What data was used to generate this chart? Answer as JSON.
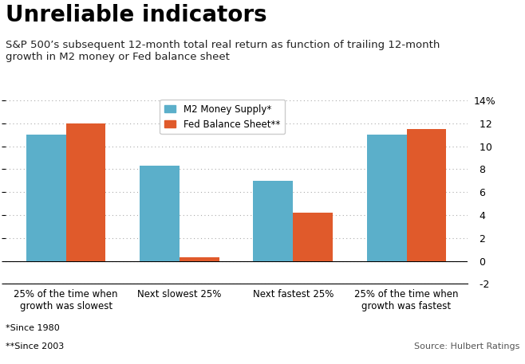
{
  "title": "Unreliable indicators",
  "subtitle": "S&P 500’s subsequent 12-month total real return as function of trailing 12-month\ngrowth in M2 money or Fed balance sheet",
  "categories": [
    "25% of the time when\ngrowth was slowest",
    "Next slowest 25%",
    "Next fastest 25%",
    "25% of the time when\ngrowth was fastest"
  ],
  "m2_values": [
    11.0,
    8.3,
    7.0,
    11.0
  ],
  "fed_values": [
    12.0,
    0.3,
    4.2,
    11.5
  ],
  "m2_color": "#5BAFCA",
  "fed_color": "#E05A2B",
  "ylim": [
    -2,
    14.5
  ],
  "yticks": [
    -2,
    0,
    2,
    4,
    6,
    8,
    10,
    12,
    14
  ],
  "ytick_labels": [
    "  -2",
    "  0",
    "  2",
    "  4",
    "  6",
    "  8",
    "  10",
    "  12",
    "14%"
  ],
  "footnote1": "*Since 1980",
  "footnote2": "**Since 2003",
  "source": "Source: Hulbert Ratings",
  "legend_labels": [
    "M2 Money Supply*",
    "Fed Balance Sheet**"
  ],
  "background_color": "#FFFFFF",
  "title_fontsize": 20,
  "subtitle_fontsize": 9.5,
  "bar_width": 0.35,
  "grid_color": "#AAAAAA"
}
